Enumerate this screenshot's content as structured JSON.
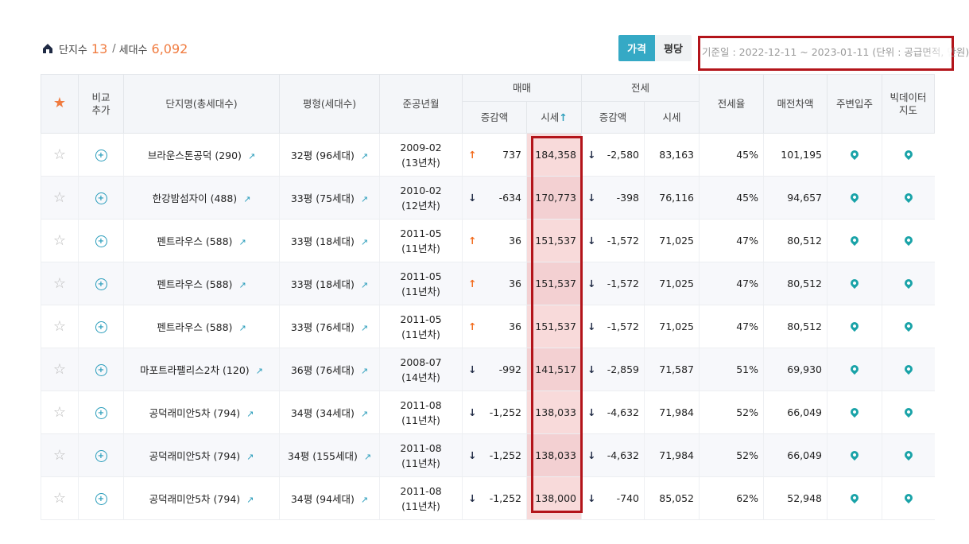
{
  "summary": {
    "complex_label": "단지수",
    "complex_count": "13",
    "divider": "/",
    "household_label": "세대수",
    "household_count": "6,092"
  },
  "toggle": {
    "price": "가격",
    "per_pyeong": "평당"
  },
  "notice": "기준일 : 2022-12-11 ~ 2023-01-11 (단위 : 공급면적, 만원)",
  "header": {
    "compare_1": "비교",
    "compare_2": "추가",
    "name": "단지명(총세대수)",
    "size": "평형(세대수)",
    "built": "준공년월",
    "sale": "매매",
    "lease": "전세",
    "change": "증감액",
    "price": "시세",
    "lease_change": "증감액",
    "lease_price": "시세",
    "lease_ratio": "전세율",
    "gap": "매전차액",
    "move_in": "주변입주",
    "bigdata_1": "빅데이터",
    "bigdata_2": "지도"
  },
  "rows": [
    {
      "name": "브라운스톤공덕 (290)",
      "size": "32평 (96세대)",
      "date": "2009-02",
      "age": "(13년차)",
      "sale_dir": "up",
      "sale_change": "737",
      "sale_price": "184,358",
      "lease_dir": "down",
      "lease_change": "-2,580",
      "lease_price": "83,163",
      "ratio": "45%",
      "gap": "101,195"
    },
    {
      "name": "한강밤섬자이 (488)",
      "size": "33평 (75세대)",
      "date": "2010-02",
      "age": "(12년차)",
      "sale_dir": "down",
      "sale_change": "-634",
      "sale_price": "170,773",
      "lease_dir": "down",
      "lease_change": "-398",
      "lease_price": "76,116",
      "ratio": "45%",
      "gap": "94,657"
    },
    {
      "name": "펜트라우스 (588)",
      "size": "33평 (18세대)",
      "date": "2011-05",
      "age": "(11년차)",
      "sale_dir": "up",
      "sale_change": "36",
      "sale_price": "151,537",
      "lease_dir": "down",
      "lease_change": "-1,572",
      "lease_price": "71,025",
      "ratio": "47%",
      "gap": "80,512"
    },
    {
      "name": "펜트라우스 (588)",
      "size": "33평 (18세대)",
      "date": "2011-05",
      "age": "(11년차)",
      "sale_dir": "up",
      "sale_change": "36",
      "sale_price": "151,537",
      "lease_dir": "down",
      "lease_change": "-1,572",
      "lease_price": "71,025",
      "ratio": "47%",
      "gap": "80,512"
    },
    {
      "name": "펜트라우스 (588)",
      "size": "33평 (76세대)",
      "date": "2011-05",
      "age": "(11년차)",
      "sale_dir": "up",
      "sale_change": "36",
      "sale_price": "151,537",
      "lease_dir": "down",
      "lease_change": "-1,572",
      "lease_price": "71,025",
      "ratio": "47%",
      "gap": "80,512"
    },
    {
      "name": "마포트라팰리스2차 (120)",
      "size": "36평 (76세대)",
      "date": "2008-07",
      "age": "(14년차)",
      "sale_dir": "down",
      "sale_change": "-992",
      "sale_price": "141,517",
      "lease_dir": "down",
      "lease_change": "-2,859",
      "lease_price": "71,587",
      "ratio": "51%",
      "gap": "69,930"
    },
    {
      "name": "공덕래미안5차 (794)",
      "size": "34평 (34세대)",
      "date": "2011-08",
      "age": "(11년차)",
      "sale_dir": "down",
      "sale_change": "-1,252",
      "sale_price": "138,033",
      "lease_dir": "down",
      "lease_change": "-4,632",
      "lease_price": "71,984",
      "ratio": "52%",
      "gap": "66,049"
    },
    {
      "name": "공덕래미안5차 (794)",
      "size": "34평 (155세대)",
      "date": "2011-08",
      "age": "(11년차)",
      "sale_dir": "down",
      "sale_change": "-1,252",
      "sale_price": "138,033",
      "lease_dir": "down",
      "lease_change": "-4,632",
      "lease_price": "71,984",
      "ratio": "52%",
      "gap": "66,049"
    },
    {
      "name": "공덕래미안5차 (794)",
      "size": "34평 (94세대)",
      "date": "2011-08",
      "age": "(11년차)",
      "sale_dir": "down",
      "sale_change": "-1,252",
      "sale_price": "138,000",
      "lease_dir": "down",
      "lease_change": "-740",
      "lease_price": "85,052",
      "ratio": "62%",
      "gap": "52,948"
    }
  ],
  "colors": {
    "accent": "#35a9c5",
    "orange": "#f07b3f",
    "highlight_border": "#b3141a",
    "price_fill": "#f8dada"
  }
}
